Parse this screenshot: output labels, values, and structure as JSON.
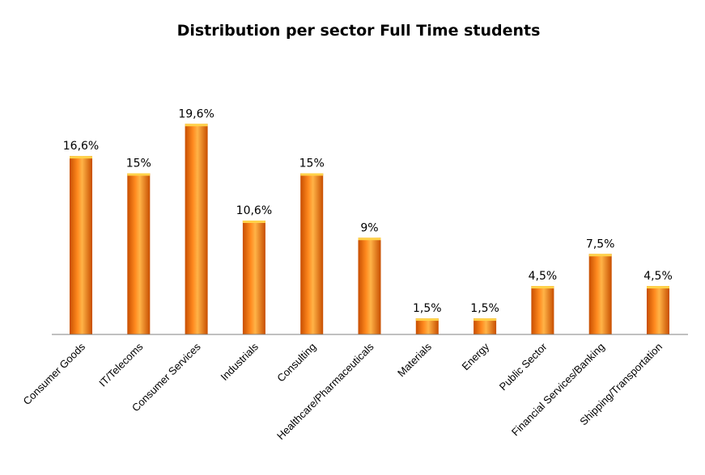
{
  "chart_data": {
    "type": "bar",
    "title": "Distribution per sector Full Time students",
    "xlabel": "",
    "ylabel": "",
    "categories": [
      "Consumer Goods",
      "IT/Telecoms",
      "Consumer Services",
      "Industrials",
      "Consulting",
      "Healthcare/Pharmaceuticals",
      "Materials",
      "Energy",
      "Public Sector",
      "Financial Services/Banking",
      "Shipping/Transportation"
    ],
    "values": [
      16.6,
      15,
      19.6,
      10.6,
      15,
      9,
      1.5,
      1.5,
      4.5,
      7.5,
      4.5
    ],
    "data_labels": [
      "16,6%",
      "15%",
      "19,6%",
      "10,6%",
      "15%",
      "9%",
      "1,5%",
      "1,5%",
      "4,5%",
      "7,5%",
      "4,5%"
    ],
    "ylim": [
      0,
      20
    ],
    "grid": false,
    "legend": "none",
    "colors": {
      "bar_light": "#ffb347",
      "bar_mid": "#ff8a1f",
      "bar_dark": "#c84e00",
      "bar_top": "#ffd24a",
      "axis": "#808080"
    }
  }
}
